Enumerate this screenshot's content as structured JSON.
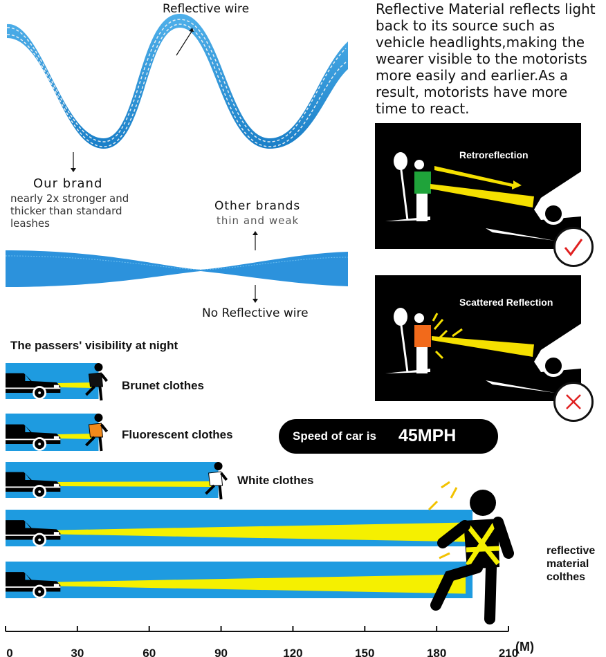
{
  "top": {
    "reflective_wire_label": "Reflective wire",
    "our_brand_title": "Our brand",
    "our_brand_desc": "nearly 2x stronger and thicker than standard leashes",
    "other_brands_title": "Other brands",
    "other_brands_desc": "thin and weak",
    "no_reflective_label": "No Reflective wire",
    "description": "Reflective Material reflects light back to its source such as vehicle headlights,making the wearer visible to the motorists more easily and earlier.As a result, motorists have more time to react."
  },
  "panels": [
    {
      "title": "Retroreflection",
      "badge": "check-icon",
      "badge_color": "#e02020",
      "vest_color": "#1fa33a"
    },
    {
      "title": "Scattered Reflection",
      "badge": "cross-icon",
      "badge_color": "#e02020",
      "vest_color": "#f26a1b"
    }
  ],
  "visibility": {
    "title": "The passers' visibility at night",
    "speed_label": "Speed of car is",
    "speed_value": "45MPH",
    "rows": [
      {
        "label": "Brunet clothes",
        "distance_m": 40,
        "shirt": "#111111"
      },
      {
        "label": "Fluorescent clothes",
        "distance_m": 40,
        "shirt": "#f28a1b"
      },
      {
        "label": "White clothes",
        "distance_m": 90,
        "shirt": "#ffffff"
      },
      {
        "label": "reflective material colthes",
        "distance_m": 195,
        "shirt": "#f5e900"
      }
    ],
    "axis": {
      "ticks": [
        "0",
        "30",
        "60",
        "90",
        "120",
        "150",
        "180",
        "210"
      ],
      "unit": "(M)",
      "max": 210
    },
    "colors": {
      "road": "#1e9be0",
      "beam": "#f5f000"
    }
  }
}
